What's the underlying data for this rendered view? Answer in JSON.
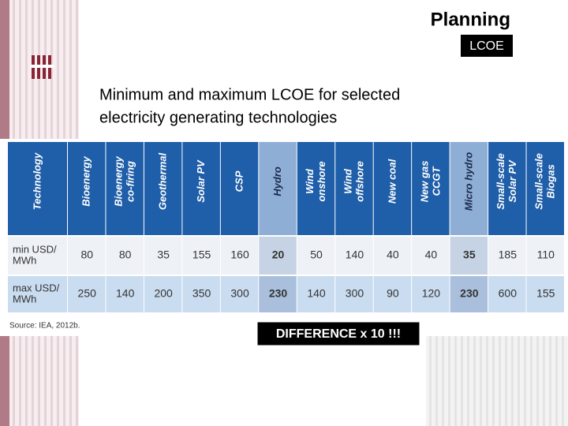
{
  "header": {
    "title": "Planning",
    "badge": "LCOE"
  },
  "subtitle": [
    "Minimum and maximum LCOE for selected",
    "electricity generating technologies"
  ],
  "table": {
    "columns": [
      [
        "Technology"
      ],
      [
        "Bioenergy"
      ],
      [
        "Bioenergy",
        "co-firing"
      ],
      [
        "Geothermal"
      ],
      [
        "Solar PV"
      ],
      [
        "CSP"
      ],
      [
        "Hydro"
      ],
      [
        "Wind",
        "onshore"
      ],
      [
        "Wind",
        "offshore"
      ],
      [
        "New coal"
      ],
      [
        "New gas",
        "CCGT"
      ],
      [
        "Micro hydro"
      ],
      [
        "Small-scale",
        "Solar PV"
      ],
      [
        "Small-scale",
        "Biogas"
      ]
    ],
    "rows": [
      [
        [
          "min USD/",
          "MWh"
        ],
        80,
        80,
        35,
        155,
        160,
        20,
        50,
        140,
        40,
        40,
        35,
        185,
        110
      ],
      [
        [
          "max USD/",
          "MWh"
        ],
        250,
        140,
        200,
        350,
        300,
        230,
        140,
        300,
        90,
        120,
        230,
        600,
        155
      ]
    ],
    "source": "Source: IEA, 2012b."
  },
  "callout": "DIFFERENCE x 10 !!!"
}
